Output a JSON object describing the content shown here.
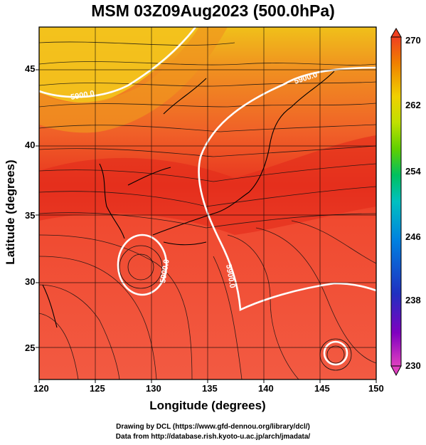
{
  "title": "MSM 03Z09Aug2023 (500.0hPa)",
  "xaxis": {
    "label": "Longitude (degrees)",
    "ticks": [
      "120",
      "125",
      "130",
      "135",
      "140",
      "145",
      "150"
    ],
    "range": [
      120,
      150
    ]
  },
  "yaxis": {
    "label": "Latitude  (degrees)",
    "ticks": [
      "25",
      "30",
      "35",
      "40",
      "45"
    ],
    "range": [
      22.4,
      47.6
    ]
  },
  "colorbar": {
    "ticks": [
      "270",
      "262",
      "254",
      "246",
      "238",
      "230"
    ],
    "range": [
      230,
      270
    ],
    "colors": [
      "#e040c0",
      "#8000c0",
      "#2030c0",
      "#0080e0",
      "#00c0c0",
      "#00c060",
      "#60d000",
      "#c0e000",
      "#f0d000",
      "#f08000",
      "#f04020"
    ]
  },
  "contour_label": "5900.0",
  "credits": {
    "line1": "Drawing by DCL (https://www.gfd-dennou.org/library/dcl/)",
    "line2": "Data from http://database.rish.kyoto-u.ac.jp/arch/jmadata/"
  },
  "colors": {
    "warm_field": "#f25a42",
    "hot_band": "#e8321f",
    "cool_field": "#f3c21a",
    "contour": "#ffffff"
  }
}
